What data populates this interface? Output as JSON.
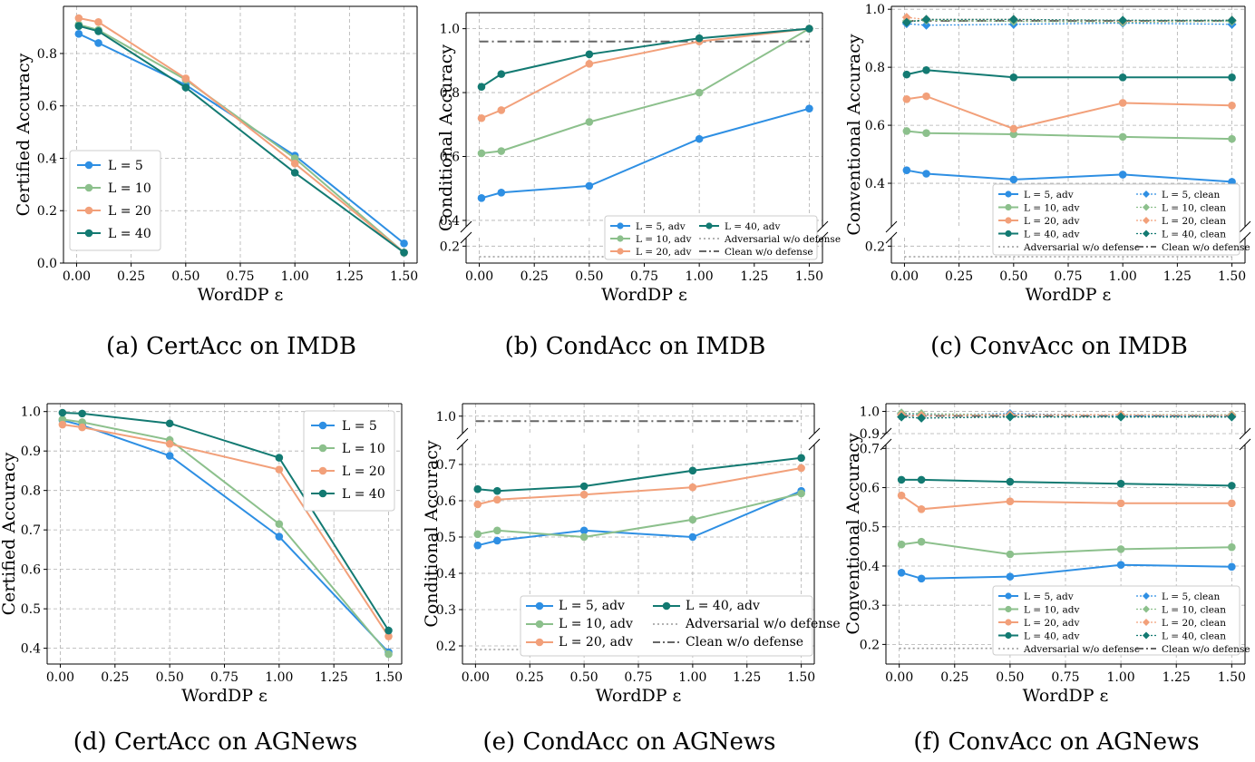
{
  "colors": {
    "l5": "#2e8fe3",
    "l10": "#8cc08c",
    "l20": "#f2a07a",
    "l40": "#137a72",
    "ref_adv": "#999999",
    "ref_clean": "#666666"
  },
  "chart_data": [
    {
      "id": "a",
      "type": "line",
      "caption": "(a)  CertAcc on IMDB",
      "xlabel": "WordDP ε",
      "ylabel": "Certified Accuracy",
      "x": [
        0.01,
        0.1,
        0.5,
        1.0,
        1.5
      ],
      "xlim": [
        -0.06,
        1.56
      ],
      "xticks": [
        "0.00",
        "0.25",
        "0.50",
        "0.75",
        "1.00",
        "1.25",
        "1.50"
      ],
      "ylim": [
        0.0,
        0.98
      ],
      "yticks": [
        "0.0",
        "0.2",
        "0.4",
        "0.6",
        "0.8"
      ],
      "legend": "bottom-left",
      "series": [
        {
          "name": "L = 5",
          "key": "l5",
          "values": [
            0.875,
            0.84,
            0.68,
            0.41,
            0.075
          ]
        },
        {
          "name": "L = 10",
          "key": "l10",
          "values": [
            0.91,
            0.89,
            0.7,
            0.4,
            0.04
          ]
        },
        {
          "name": "L = 20",
          "key": "l20",
          "values": [
            0.935,
            0.92,
            0.705,
            0.38,
            0.04
          ]
        },
        {
          "name": "L = 40",
          "key": "l40",
          "values": [
            0.905,
            0.885,
            0.67,
            0.345,
            0.04
          ]
        }
      ]
    },
    {
      "id": "b",
      "type": "line",
      "caption": "(b)  CondAcc on IMDB",
      "xlabel": "WordDP ε",
      "ylabel": "Conditional Accuracy",
      "x": [
        0.01,
        0.1,
        0.5,
        1.0,
        1.5
      ],
      "xlim": [
        -0.06,
        1.56
      ],
      "xticks": [
        "0.00",
        "0.25",
        "0.50",
        "0.75",
        "1.00",
        "1.25",
        "1.50"
      ],
      "ylim": [
        0.38,
        1.05
      ],
      "yticks": [
        "0.4",
        "0.6",
        "0.8",
        "1.0"
      ],
      "lower_ylim": [
        0.16,
        0.22
      ],
      "lower_yticks": [
        "0.2"
      ],
      "legend": "bottom-right",
      "series": [
        {
          "name": "L = 5, adv",
          "key": "l5",
          "values": [
            0.47,
            0.487,
            0.508,
            0.655,
            0.75
          ]
        },
        {
          "name": "L = 10, adv",
          "key": "l10",
          "values": [
            0.61,
            0.617,
            0.708,
            0.8,
            1.0
          ]
        },
        {
          "name": "L = 20, adv",
          "key": "l20",
          "values": [
            0.72,
            0.745,
            0.89,
            0.96,
            1.0
          ]
        },
        {
          "name": "L = 40, adv",
          "key": "l40",
          "values": [
            0.818,
            0.858,
            0.92,
            0.97,
            1.0
          ]
        }
      ],
      "references": [
        {
          "name": "Adversarial w/o defense",
          "key": "ref_adv",
          "style": "dotted",
          "value": 0.175
        },
        {
          "name": "Clean w/o defense",
          "key": "ref_clean",
          "style": "dashdot",
          "value": 0.96
        }
      ]
    },
    {
      "id": "c",
      "type": "line",
      "caption": "(c)  ConvAcc on IMDB",
      "xlabel": "WordDP ε",
      "ylabel": "Conventional Accuracy",
      "x": [
        0.01,
        0.1,
        0.5,
        1.0,
        1.5
      ],
      "xlim": [
        -0.06,
        1.56
      ],
      "xticks": [
        "0.00",
        "0.25",
        "0.50",
        "0.75",
        "1.00",
        "1.25",
        "1.50"
      ],
      "ylim": [
        0.25,
        1.01
      ],
      "yticks": [
        "0.4",
        "0.6",
        "0.8",
        "1.0"
      ],
      "lower_ylim": [
        0.16,
        0.22
      ],
      "lower_yticks": [
        "0.2"
      ],
      "legend": "bottom-right",
      "series": [
        {
          "name": "L = 5, adv",
          "key": "l5",
          "values": [
            0.445,
            0.433,
            0.413,
            0.43,
            0.405
          ]
        },
        {
          "name": "L = 10, adv",
          "key": "l10",
          "values": [
            0.58,
            0.573,
            0.569,
            0.56,
            0.553
          ]
        },
        {
          "name": "L = 20, adv",
          "key": "l20",
          "values": [
            0.69,
            0.7,
            0.588,
            0.677,
            0.668
          ]
        },
        {
          "name": "L = 40, adv",
          "key": "l40",
          "values": [
            0.775,
            0.79,
            0.765,
            0.765,
            0.765
          ]
        },
        {
          "name": "L = 5, clean",
          "key": "l5",
          "clean": true,
          "values": [
            0.95,
            0.945,
            0.948,
            0.952,
            0.948
          ]
        },
        {
          "name": "L = 10, clean",
          "key": "l10",
          "clean": true,
          "values": [
            0.96,
            0.962,
            0.958,
            0.955,
            0.958
          ]
        },
        {
          "name": "L = 20, clean",
          "key": "l20",
          "clean": true,
          "values": [
            0.972,
            0.965,
            0.965,
            0.96,
            0.962
          ]
        },
        {
          "name": "L = 40, clean",
          "key": "l40",
          "clean": true,
          "values": [
            0.955,
            0.965,
            0.965,
            0.962,
            0.962
          ]
        }
      ],
      "references": [
        {
          "name": "Adversarial w/o defense",
          "key": "ref_adv",
          "style": "dotted",
          "value": 0.175
        },
        {
          "name": "Clean w/o defense",
          "key": "ref_clean",
          "style": "dashdot",
          "value": 0.96
        }
      ]
    },
    {
      "id": "d",
      "type": "line",
      "caption": "(d)  CertAcc on AGNews",
      "xlabel": "WordDP ε",
      "ylabel": "Certified Accuracy",
      "x": [
        0.01,
        0.1,
        0.5,
        1.0,
        1.5
      ],
      "xlim": [
        -0.06,
        1.56
      ],
      "xticks": [
        "0.00",
        "0.25",
        "0.50",
        "0.75",
        "1.00",
        "1.25",
        "1.50"
      ],
      "ylim": [
        0.36,
        1.02
      ],
      "yticks": [
        "0.4",
        "0.5",
        "0.6",
        "0.7",
        "0.8",
        "0.9",
        "1.0"
      ],
      "legend": "top-right",
      "series": [
        {
          "name": "L = 5",
          "key": "l5",
          "values": [
            0.978,
            0.965,
            0.888,
            0.683,
            0.39
          ]
        },
        {
          "name": "L = 10",
          "key": "l10",
          "values": [
            0.98,
            0.973,
            0.928,
            0.715,
            0.385
          ]
        },
        {
          "name": "L = 20",
          "key": "l20",
          "values": [
            0.967,
            0.96,
            0.918,
            0.853,
            0.43
          ]
        },
        {
          "name": "L = 40",
          "key": "l40",
          "values": [
            0.997,
            0.995,
            0.97,
            0.883,
            0.445
          ]
        }
      ]
    },
    {
      "id": "e",
      "type": "line",
      "caption": "(e)  CondAcc on AGNews",
      "xlabel": "WordDP ε",
      "ylabel": "Conditional Accuracy",
      "x": [
        0.01,
        0.1,
        0.5,
        1.0,
        1.5
      ],
      "xlim": [
        -0.06,
        1.56
      ],
      "xticks": [
        "0.00",
        "0.25",
        "0.50",
        "0.75",
        "1.00",
        "1.25",
        "1.50"
      ],
      "ylim": [
        0.15,
        0.755
      ],
      "yticks": [
        "0.2",
        "0.3",
        "0.4",
        "0.5",
        "0.6",
        "0.7"
      ],
      "upper_ylim": [
        0.93,
        1.05
      ],
      "upper_yticks": [
        "1.0"
      ],
      "legend": "bottom-right",
      "series": [
        {
          "name": "L = 5, adv",
          "key": "l5",
          "values": [
            0.477,
            0.49,
            0.518,
            0.5,
            0.627
          ]
        },
        {
          "name": "L = 10, adv",
          "key": "l10",
          "values": [
            0.508,
            0.518,
            0.5,
            0.548,
            0.62
          ]
        },
        {
          "name": "L = 20, adv",
          "key": "l20",
          "values": [
            0.59,
            0.603,
            0.617,
            0.637,
            0.69
          ]
        },
        {
          "name": "L = 40, adv",
          "key": "l40",
          "values": [
            0.632,
            0.627,
            0.64,
            0.683,
            0.718
          ]
        }
      ],
      "references": [
        {
          "name": "Adversarial w/o defense",
          "key": "ref_adv",
          "style": "dotted",
          "value": 0.19
        },
        {
          "name": "Clean w/o defense",
          "key": "ref_clean",
          "style": "dashdot",
          "value": 0.98
        }
      ]
    },
    {
      "id": "f",
      "type": "line",
      "caption": "(f)  ConvAcc on AGNews",
      "xlabel": "WordDP ε",
      "ylabel": "Conventional Accuracy",
      "x": [
        0.01,
        0.1,
        0.5,
        1.0,
        1.5
      ],
      "xlim": [
        -0.06,
        1.56
      ],
      "xticks": [
        "0.00",
        "0.25",
        "0.50",
        "0.75",
        "1.00",
        "1.25",
        "1.50"
      ],
      "ylim": [
        0.15,
        0.71
      ],
      "yticks": [
        "0.2",
        "0.3",
        "0.4",
        "0.5",
        "0.6",
        "0.7"
      ],
      "upper_ylim": [
        0.9,
        1.035
      ],
      "upper_yticks": [
        "0.9",
        "1.0"
      ],
      "legend": "bottom-right",
      "series": [
        {
          "name": "L = 5, adv",
          "key": "l5",
          "values": [
            0.383,
            0.368,
            0.373,
            0.403,
            0.398
          ]
        },
        {
          "name": "L = 10, adv",
          "key": "l10",
          "values": [
            0.455,
            0.462,
            0.43,
            0.443,
            0.448
          ]
        },
        {
          "name": "L = 20, adv",
          "key": "l20",
          "values": [
            0.58,
            0.545,
            0.565,
            0.56,
            0.56
          ]
        },
        {
          "name": "L = 40, adv",
          "key": "l40",
          "values": [
            0.62,
            0.62,
            0.615,
            0.61,
            0.605
          ]
        },
        {
          "name": "L = 5, clean",
          "key": "l5",
          "clean": true,
          "values": [
            0.99,
            0.985,
            0.99,
            0.982,
            0.98
          ]
        },
        {
          "name": "L = 10, clean",
          "key": "l10",
          "clean": true,
          "values": [
            0.993,
            0.99,
            0.985,
            0.985,
            0.985
          ]
        },
        {
          "name": "L = 20, clean",
          "key": "l20",
          "clean": true,
          "values": [
            0.985,
            0.982,
            0.985,
            0.985,
            0.982
          ]
        },
        {
          "name": "L = 40, clean",
          "key": "l40",
          "clean": true,
          "values": [
            0.975,
            0.97,
            0.975,
            0.975,
            0.975
          ]
        }
      ],
      "references": [
        {
          "name": "Adversarial w/o defense",
          "key": "ref_adv",
          "style": "dotted",
          "value": 0.19
        },
        {
          "name": "Clean w/o defense",
          "key": "ref_clean",
          "style": "dashdot",
          "value": 0.98
        }
      ]
    }
  ]
}
